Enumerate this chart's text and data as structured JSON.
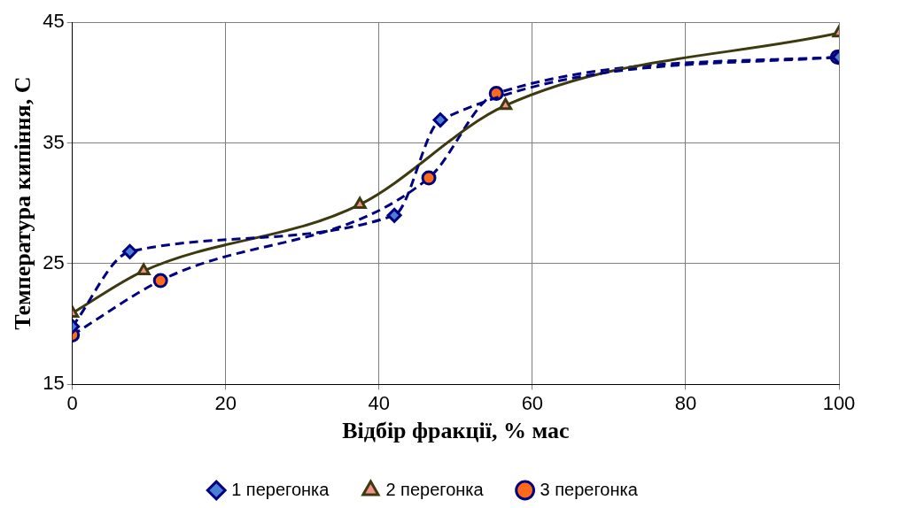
{
  "chart_data": {
    "type": "line",
    "xlabel": "Відбір фракції, % мас",
    "ylabel": "Температура кипіння, С",
    "xlim": [
      0,
      100
    ],
    "xticks": [
      0,
      20,
      40,
      60,
      80,
      100
    ],
    "ylim": [
      15,
      45
    ],
    "yticks": [
      15,
      25,
      35,
      45
    ],
    "grid": true,
    "legend": "bottom",
    "series": [
      {
        "name": "1 перегонка",
        "color": "#000080",
        "line_style": "dashed",
        "marker": "diamond",
        "colors": [
          "#4a7fd6",
          "#4a7fd6",
          "#4a7fd6",
          "#4a7fd6",
          "#4a7fd6"
        ],
        "x": [
          0,
          7.5,
          42,
          48,
          100
        ],
        "values": [
          19.8,
          26,
          29,
          36.9,
          42.1
        ]
      },
      {
        "name": "2 перегонка",
        "color": "#3d3a10",
        "line_style": "solid",
        "marker": "triangle",
        "colors": [
          "#f4928a",
          "#f4928a",
          "#f4928a",
          "#f4928a",
          "#f4928a"
        ],
        "x": [
          0,
          9.3,
          37.5,
          56.5,
          100
        ],
        "values": [
          20.9,
          24.4,
          29.9,
          38.1,
          44.1
        ]
      },
      {
        "name": "3 перегонка",
        "color": "#000080",
        "line_style": "dashed",
        "marker": "circle",
        "colors": [
          "#ff6a1a",
          "#ff6a1a",
          "#ff6a1a",
          "#ff6a1a",
          "#ff6a1a"
        ],
        "x": [
          0,
          11.5,
          46.5,
          55.3,
          99.8
        ],
        "values": [
          19.1,
          23.6,
          32.1,
          39.1,
          42.1
        ]
      }
    ]
  }
}
